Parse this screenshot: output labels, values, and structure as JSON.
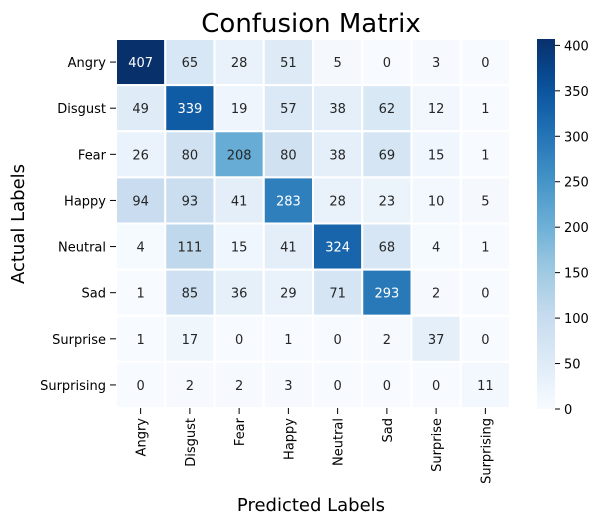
{
  "chart_data": {
    "type": "heatmap",
    "title": "Confusion Matrix",
    "xlabel": "Predicted Labels",
    "ylabel": "Actual Labels",
    "x_categories": [
      "Angry",
      "Disgust",
      "Fear",
      "Happy",
      "Neutral",
      "Sad",
      "Surprise",
      "Surprising"
    ],
    "y_categories": [
      "Angry",
      "Disgust",
      "Fear",
      "Happy",
      "Neutral",
      "Sad",
      "Surprise",
      "Surprising"
    ],
    "values": [
      [
        407,
        65,
        28,
        51,
        5,
        0,
        3,
        0
      ],
      [
        49,
        339,
        19,
        57,
        38,
        62,
        12,
        1
      ],
      [
        26,
        80,
        208,
        80,
        38,
        69,
        15,
        1
      ],
      [
        94,
        93,
        41,
        283,
        28,
        23,
        10,
        5
      ],
      [
        4,
        111,
        15,
        41,
        324,
        68,
        4,
        1
      ],
      [
        1,
        85,
        36,
        29,
        71,
        293,
        2,
        0
      ],
      [
        1,
        17,
        0,
        1,
        0,
        2,
        37,
        0
      ],
      [
        0,
        2,
        2,
        3,
        0,
        0,
        0,
        11
      ]
    ],
    "colormap": "Blues",
    "value_range": [
      0,
      407
    ],
    "colorbar_ticks": [
      0,
      50,
      100,
      150,
      200,
      250,
      300,
      350,
      400
    ],
    "grid": false
  }
}
